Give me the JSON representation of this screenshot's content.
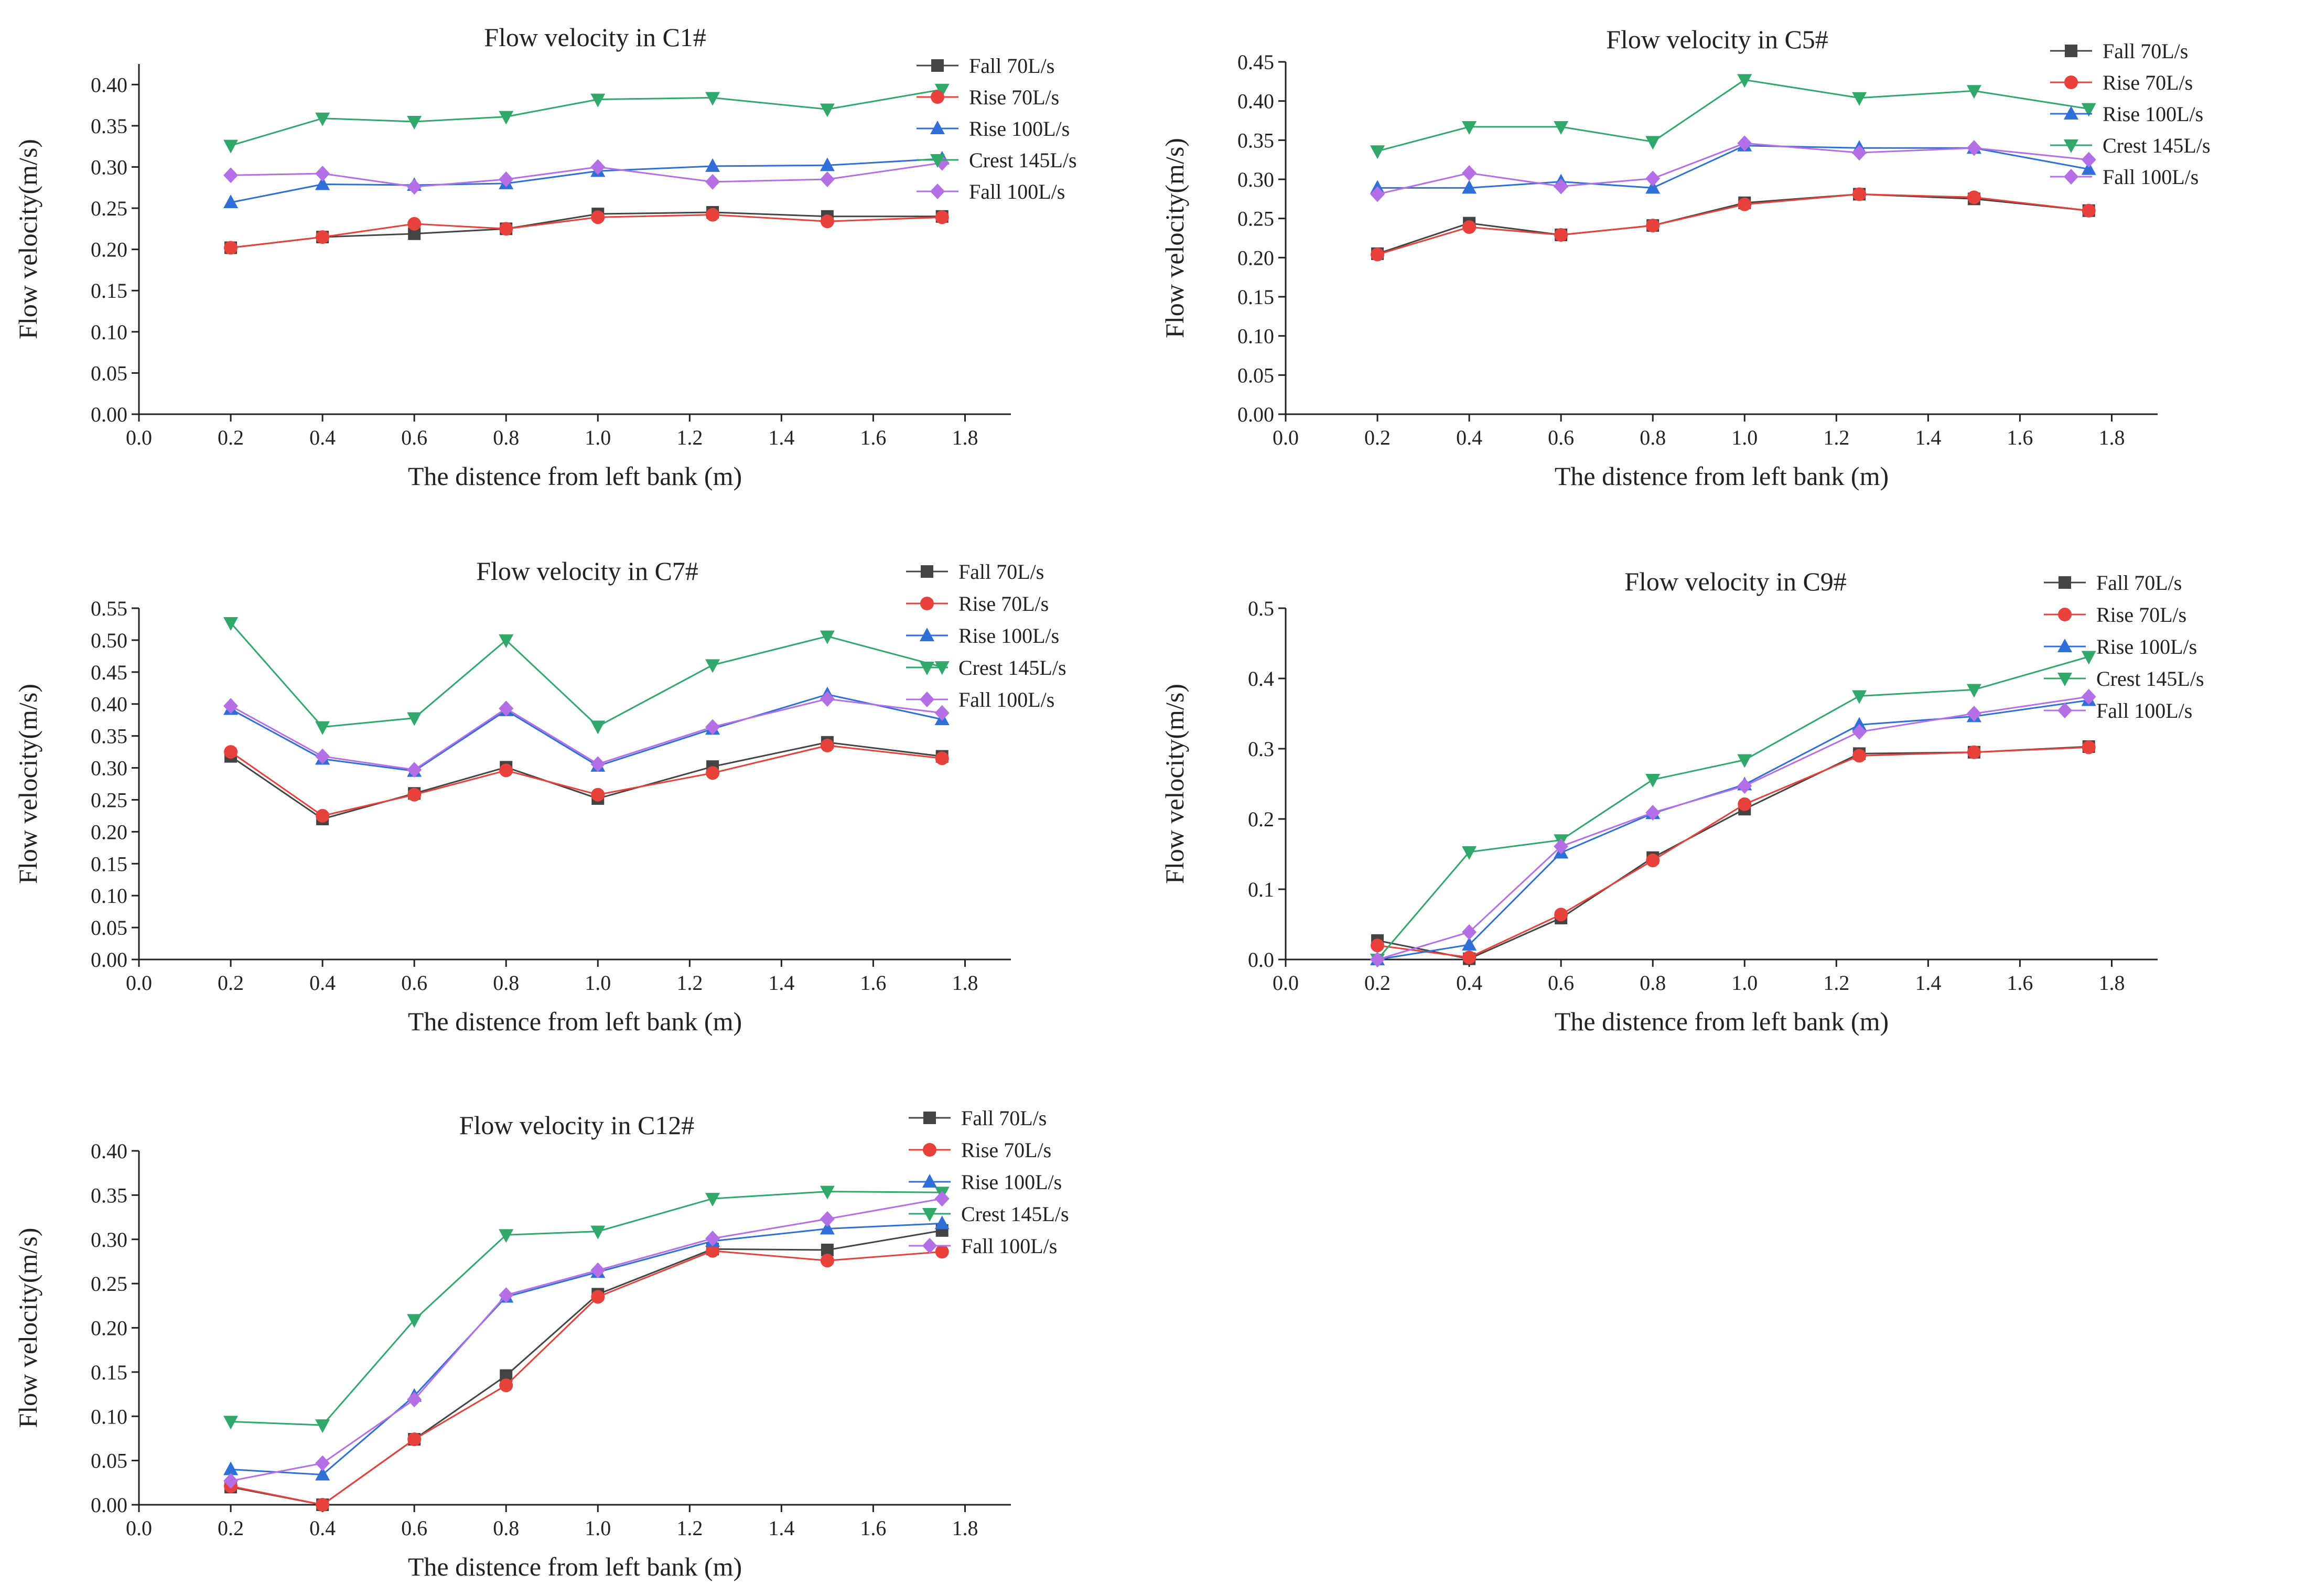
{
  "series_styles": [
    {
      "name": "Fall 70L/s",
      "color": "#444444",
      "marker": "square"
    },
    {
      "name": "Rise 70L/s",
      "color": "#e8403a",
      "marker": "circle"
    },
    {
      "name": "Rise 100L/s",
      "color": "#2f6fd8",
      "marker": "triangle-up"
    },
    {
      "name": "Crest 145L/s",
      "color": "#2fa86a",
      "marker": "triangle-down"
    },
    {
      "name": "Fall 100L/s",
      "color": "#b46ee6",
      "marker": "diamond"
    }
  ],
  "chart_data": [
    {
      "id": "c1",
      "type": "line",
      "title": "Flow velocity in C1#",
      "xlabel": "The distence from left bank (m)",
      "ylabel": "Flow velocity(m/s)",
      "xlim": [
        0.0,
        1.9
      ],
      "ylim": [
        0.0,
        0.425
      ],
      "xticks": [
        0.0,
        0.2,
        0.4,
        0.6,
        0.8,
        1.0,
        1.2,
        1.4,
        1.6,
        1.8
      ],
      "xtick_labels": [
        "0.0",
        "0.2",
        "0.4",
        "0.6",
        "0.8",
        "1.0",
        "1.2",
        "1.4",
        "1.6",
        "1.8"
      ],
      "yticks": [
        0.0,
        0.05,
        0.1,
        0.15,
        0.2,
        0.25,
        0.3,
        0.35,
        0.4
      ],
      "ytick_labels": [
        "0.00",
        "0.05",
        "0.10",
        "0.15",
        "0.20",
        "0.25",
        "0.30",
        "0.35",
        "0.40"
      ],
      "x": [
        0.2,
        0.4,
        0.6,
        0.8,
        1.0,
        1.25,
        1.5,
        1.75
      ],
      "legend_position": "top-right",
      "series": [
        {
          "name": "Fall 70L/s",
          "values": [
            0.202,
            0.215,
            0.219,
            0.225,
            0.243,
            0.245,
            0.24,
            0.24
          ]
        },
        {
          "name": "Rise 70L/s",
          "values": [
            0.202,
            0.215,
            0.231,
            0.225,
            0.239,
            0.242,
            0.234,
            0.239
          ]
        },
        {
          "name": "Rise 100L/s",
          "values": [
            0.257,
            0.279,
            0.278,
            0.28,
            0.295,
            0.301,
            0.302,
            0.31
          ]
        },
        {
          "name": "Crest 145L/s",
          "values": [
            0.326,
            0.359,
            0.355,
            0.361,
            0.382,
            0.384,
            0.37,
            0.394
          ]
        },
        {
          "name": "Fall 100L/s",
          "values": [
            0.29,
            0.292,
            0.276,
            0.285,
            0.3,
            0.282,
            0.285,
            0.305
          ]
        }
      ]
    },
    {
      "id": "c5",
      "type": "line",
      "title": "Flow velocity in C5#",
      "xlabel": "The distence from left bank (m)",
      "ylabel": "Flow velocity(m/s)",
      "xlim": [
        0.0,
        1.9
      ],
      "ylim": [
        0.0,
        0.45
      ],
      "xticks": [
        0.0,
        0.2,
        0.4,
        0.6,
        0.8,
        1.0,
        1.2,
        1.4,
        1.6,
        1.8
      ],
      "xtick_labels": [
        "0.0",
        "0.2",
        "0.4",
        "0.6",
        "0.8",
        "1.0",
        "1.2",
        "1.4",
        "1.6",
        "1.8"
      ],
      "yticks": [
        0.0,
        0.05,
        0.1,
        0.15,
        0.2,
        0.25,
        0.3,
        0.35,
        0.4,
        0.45
      ],
      "ytick_labels": [
        "0.00",
        "0.05",
        "0.10",
        "0.15",
        "0.20",
        "0.25",
        "0.30",
        "0.35",
        "0.40",
        "0.45"
      ],
      "x": [
        0.2,
        0.4,
        0.6,
        0.8,
        1.0,
        1.25,
        1.5,
        1.75
      ],
      "legend_position": "top-right",
      "series": [
        {
          "name": "Fall 70L/s",
          "values": [
            0.205,
            0.244,
            0.229,
            0.241,
            0.27,
            0.281,
            0.275,
            0.26
          ]
        },
        {
          "name": "Rise 70L/s",
          "values": [
            0.204,
            0.239,
            0.229,
            0.241,
            0.268,
            0.281,
            0.277,
            0.26
          ]
        },
        {
          "name": "Rise 100L/s",
          "values": [
            0.289,
            0.289,
            0.297,
            0.289,
            0.343,
            0.34,
            0.34,
            0.313
          ]
        },
        {
          "name": "Crest 145L/s",
          "values": [
            0.336,
            0.367,
            0.367,
            0.348,
            0.427,
            0.404,
            0.413,
            0.39
          ]
        },
        {
          "name": "Fall 100L/s",
          "values": [
            0.281,
            0.308,
            0.291,
            0.301,
            0.346,
            0.334,
            0.34,
            0.325
          ]
        }
      ]
    },
    {
      "id": "c7",
      "type": "line",
      "title": "Flow velocity in C7#",
      "xlabel": "The distence from left bank (m)",
      "ylabel": "Flow velocity(m/s)",
      "xlim": [
        0.0,
        1.9
      ],
      "ylim": [
        0.0,
        0.55
      ],
      "xticks": [
        0.0,
        0.2,
        0.4,
        0.6,
        0.8,
        1.0,
        1.2,
        1.4,
        1.6,
        1.8
      ],
      "xtick_labels": [
        "0.0",
        "0.2",
        "0.4",
        "0.6",
        "0.8",
        "1.0",
        "1.2",
        "1.4",
        "1.6",
        "1.8"
      ],
      "yticks": [
        0.0,
        0.05,
        0.1,
        0.15,
        0.2,
        0.25,
        0.3,
        0.35,
        0.4,
        0.45,
        0.5,
        0.55
      ],
      "ytick_labels": [
        "0.00",
        "0.05",
        "0.10",
        "0.15",
        "0.20",
        "0.25",
        "0.30",
        "0.35",
        "0.40",
        "0.45",
        "0.50",
        "0.55"
      ],
      "x": [
        0.2,
        0.4,
        0.6,
        0.8,
        1.0,
        1.25,
        1.5,
        1.75
      ],
      "legend_position": "top-right",
      "series": [
        {
          "name": "Fall 70L/s",
          "values": [
            0.318,
            0.22,
            0.26,
            0.301,
            0.252,
            0.302,
            0.34,
            0.318
          ]
        },
        {
          "name": "Rise 70L/s",
          "values": [
            0.325,
            0.225,
            0.258,
            0.296,
            0.258,
            0.292,
            0.335,
            0.315
          ]
        },
        {
          "name": "Rise 100L/s",
          "values": [
            0.392,
            0.314,
            0.295,
            0.39,
            0.303,
            0.361,
            0.415,
            0.376
          ]
        },
        {
          "name": "Crest 145L/s",
          "values": [
            0.527,
            0.364,
            0.378,
            0.5,
            0.365,
            0.461,
            0.506,
            0.458
          ]
        },
        {
          "name": "Fall 100L/s",
          "values": [
            0.397,
            0.318,
            0.297,
            0.393,
            0.306,
            0.364,
            0.408,
            0.386
          ]
        }
      ]
    },
    {
      "id": "c9",
      "type": "line",
      "title": "Flow velocity in C9#",
      "xlabel": "The distence from left bank (m)",
      "ylabel": "Flow velocity(m/s)",
      "xlim": [
        0.0,
        1.9
      ],
      "ylim": [
        0.0,
        0.5
      ],
      "xticks": [
        0.0,
        0.2,
        0.4,
        0.6,
        0.8,
        1.0,
        1.2,
        1.4,
        1.6,
        1.8
      ],
      "xtick_labels": [
        "0.0",
        "0.2",
        "0.4",
        "0.6",
        "0.8",
        "1.0",
        "1.2",
        "1.4",
        "1.6",
        "1.8"
      ],
      "yticks": [
        0.0,
        0.1,
        0.2,
        0.3,
        0.4,
        0.5
      ],
      "ytick_labels": [
        "0.0",
        "0.1",
        "0.2",
        "0.3",
        "0.4",
        "0.5"
      ],
      "x": [
        0.2,
        0.4,
        0.6,
        0.8,
        1.0,
        1.25,
        1.5,
        1.75
      ],
      "legend_position": "top-right",
      "series": [
        {
          "name": "Fall 70L/s",
          "values": [
            0.027,
            0.001,
            0.059,
            0.145,
            0.214,
            0.293,
            0.295,
            0.303
          ]
        },
        {
          "name": "Rise 70L/s",
          "values": [
            0.02,
            0.003,
            0.064,
            0.141,
            0.221,
            0.29,
            0.295,
            0.302
          ]
        },
        {
          "name": "Rise 100L/s",
          "values": [
            0.0,
            0.021,
            0.152,
            0.208,
            0.249,
            0.334,
            0.346,
            0.369
          ]
        },
        {
          "name": "Crest 145L/s",
          "values": [
            0.0,
            0.153,
            0.17,
            0.256,
            0.284,
            0.375,
            0.384,
            0.431
          ]
        },
        {
          "name": "Fall 100L/s",
          "values": [
            0.0,
            0.039,
            0.161,
            0.209,
            0.247,
            0.324,
            0.35,
            0.374
          ]
        }
      ]
    },
    {
      "id": "c12",
      "type": "line",
      "title": "Flow velocity in C12#",
      "xlabel": "The distence from left bank (m)",
      "ylabel": "Flow velocity(m/s)",
      "xlim": [
        0.0,
        1.9
      ],
      "ylim": [
        0.0,
        0.4
      ],
      "xticks": [
        0.0,
        0.2,
        0.4,
        0.6,
        0.8,
        1.0,
        1.2,
        1.4,
        1.6,
        1.8
      ],
      "xtick_labels": [
        "0.0",
        "0.2",
        "0.4",
        "0.6",
        "0.8",
        "1.0",
        "1.2",
        "1.4",
        "1.6",
        "1.8"
      ],
      "yticks": [
        0.0,
        0.05,
        0.1,
        0.15,
        0.2,
        0.25,
        0.3,
        0.35,
        0.4
      ],
      "ytick_labels": [
        "0.00",
        "0.05",
        "0.10",
        "0.15",
        "0.20",
        "0.25",
        "0.30",
        "0.35",
        "0.40"
      ],
      "x": [
        0.2,
        0.4,
        0.6,
        0.8,
        1.0,
        1.25,
        1.5,
        1.75
      ],
      "legend_position": "top-right",
      "series": [
        {
          "name": "Fall 70L/s",
          "values": [
            0.02,
            0.0,
            0.074,
            0.146,
            0.238,
            0.289,
            0.288,
            0.31
          ]
        },
        {
          "name": "Rise 70L/s",
          "values": [
            0.021,
            0.0,
            0.074,
            0.135,
            0.235,
            0.287,
            0.276,
            0.286
          ]
        },
        {
          "name": "Rise 100L/s",
          "values": [
            0.04,
            0.034,
            0.123,
            0.235,
            0.263,
            0.298,
            0.312,
            0.318
          ]
        },
        {
          "name": "Crest 145L/s",
          "values": [
            0.094,
            0.09,
            0.209,
            0.305,
            0.309,
            0.346,
            0.354,
            0.353
          ]
        },
        {
          "name": "Fall 100L/s",
          "values": [
            0.027,
            0.047,
            0.119,
            0.237,
            0.265,
            0.301,
            0.323,
            0.346
          ]
        }
      ]
    }
  ]
}
